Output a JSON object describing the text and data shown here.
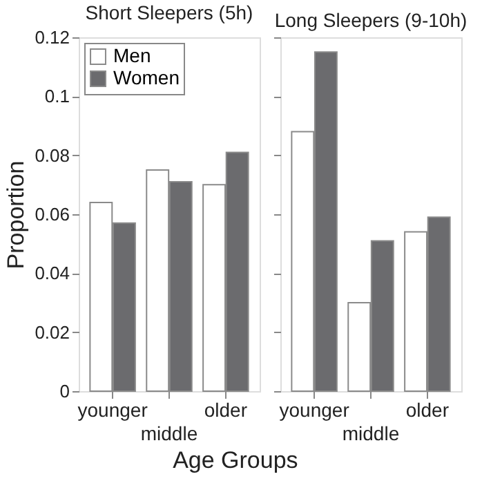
{
  "chart_data": [
    {
      "type": "bar",
      "title": "Short Sleepers (5h)",
      "xlabel": "Age Groups",
      "ylabel": "Proportion",
      "categories": [
        "younger",
        "middle",
        "older"
      ],
      "series": [
        {
          "name": "Men",
          "color": "#ffffff",
          "values": [
            0.064,
            0.075,
            0.07
          ]
        },
        {
          "name": "Women",
          "color": "#6b6b6e",
          "values": [
            0.057,
            0.071,
            0.081
          ]
        }
      ],
      "ylim": [
        0,
        0.12
      ],
      "yticks": [
        0,
        0.02,
        0.04,
        0.06,
        0.08,
        0.1,
        0.12
      ],
      "legend": "top left"
    },
    {
      "type": "bar",
      "title": "Long Sleepers (9-10h)",
      "categories": [
        "younger",
        "middle",
        "older"
      ],
      "series": [
        {
          "name": "Men",
          "color": "#ffffff",
          "values": [
            0.088,
            0.03,
            0.054
          ]
        },
        {
          "name": "Women",
          "color": "#6b6b6e",
          "values": [
            0.115,
            0.051,
            0.059
          ]
        }
      ],
      "ylim": [
        0,
        0.12
      ],
      "yticks": [
        0,
        0.02,
        0.04,
        0.06,
        0.08,
        0.1,
        0.12
      ],
      "tick_labels": "x"
    }
  ]
}
